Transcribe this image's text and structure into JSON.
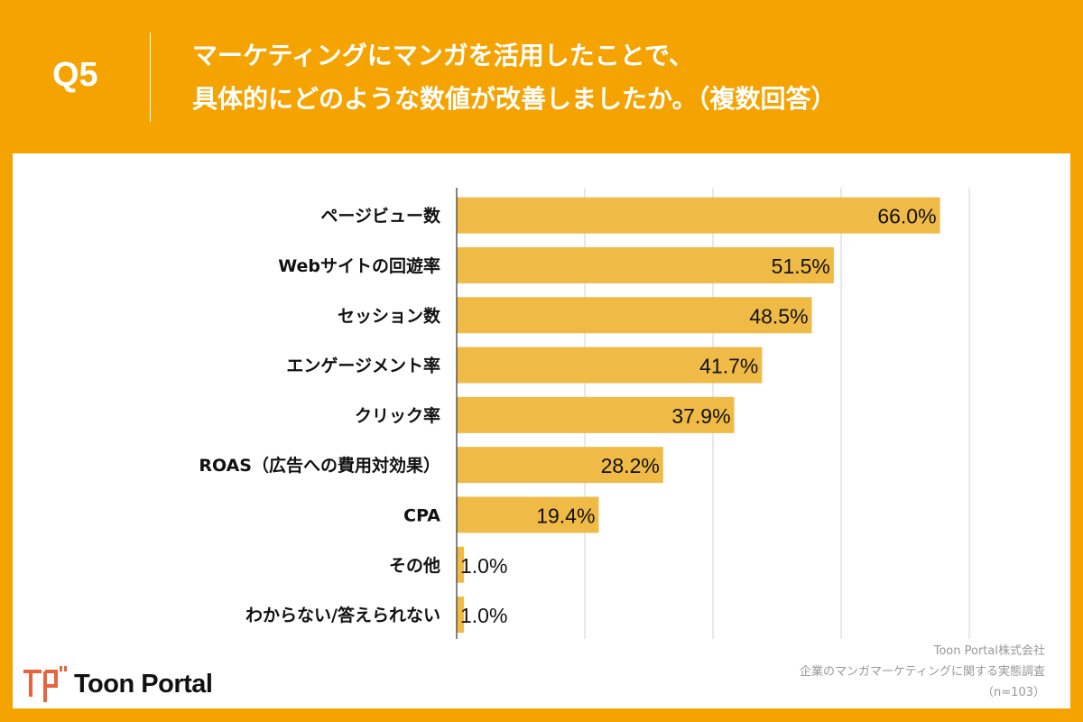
{
  "header": {
    "question_no": "Q5",
    "title_line1": "マーケティングにマンガを活用したことで、",
    "title_line2": "具体的にどのような数値が改善しましたか。（複数回答）"
  },
  "colors": {
    "frame": "#F5A300",
    "bar": "#EFBA45",
    "grid": "#d0d0d0"
  },
  "chart_data": {
    "type": "bar",
    "orientation": "horizontal",
    "categories": [
      "ページビュー数",
      "Webサイトの回遊率",
      "セッション数",
      "エンゲージメント率",
      "クリック率",
      "ROAS（広告への費用対効果）",
      "CPA",
      "その他",
      "わからない/答えられない"
    ],
    "values": [
      66.0,
      51.5,
      48.5,
      41.7,
      37.9,
      28.2,
      19.4,
      1.0,
      1.0
    ],
    "value_labels": [
      "66.0%",
      "51.5%",
      "48.5%",
      "41.7%",
      "37.9%",
      "28.2%",
      "19.4%",
      "1.0%",
      "1.0%"
    ],
    "xlim": [
      0,
      70
    ],
    "grid": true,
    "unit": "%"
  },
  "footer": {
    "logo_text": "Toon Portal",
    "source_line1": "Toon Portal株式会社",
    "source_line2": "企業のマンガマーケティングに関する実態調査",
    "source_line3": "（n=103）"
  }
}
